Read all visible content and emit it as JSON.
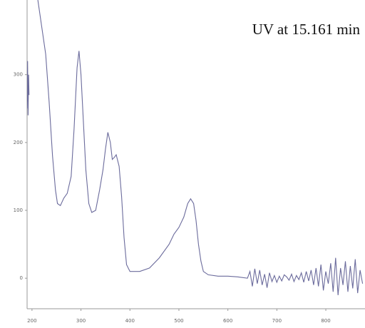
{
  "chart_data": {
    "type": "line",
    "title": "UV at 15.161 min",
    "x": [
      190,
      191,
      192,
      193,
      194,
      200,
      212,
      220,
      228,
      235,
      242,
      248,
      252,
      258,
      265,
      272,
      280,
      286,
      292,
      296,
      300,
      305,
      310,
      316,
      322,
      330,
      338,
      345,
      350,
      355,
      360,
      364,
      368,
      372,
      378,
      383,
      388,
      393,
      400,
      420,
      440,
      460,
      480,
      490,
      500,
      510,
      518,
      524,
      530,
      535,
      540,
      545,
      550,
      560,
      580,
      600,
      620,
      640,
      645,
      650,
      655,
      660,
      665,
      670,
      675,
      680,
      685,
      690,
      695,
      700,
      705,
      710,
      715,
      720,
      725,
      730,
      735,
      740,
      745,
      750,
      755,
      760,
      765,
      770,
      775,
      780,
      785,
      790,
      795,
      800,
      805,
      810,
      815,
      820,
      825,
      830,
      835,
      840,
      845,
      850,
      855,
      860,
      865,
      870,
      875
    ],
    "series": [
      {
        "color": "#6b6b9c",
        "values": [
          250,
          320,
          240,
          300,
          270,
          null,
          410,
          370,
          330,
          260,
          180,
          130,
          110,
          107,
          118,
          125,
          150,
          220,
          310,
          335,
          300,
          230,
          160,
          110,
          97,
          100,
          130,
          160,
          190,
          215,
          200,
          175,
          178,
          182,
          165,
          120,
          60,
          20,
          10,
          10,
          15,
          30,
          50,
          65,
          75,
          90,
          110,
          117,
          110,
          85,
          50,
          25,
          10,
          5,
          3,
          3,
          2,
          0,
          10,
          -12,
          14,
          -8,
          12,
          -10,
          6,
          -14,
          8,
          -5,
          4,
          -6,
          3,
          -4,
          5,
          2,
          -3,
          6,
          -5,
          4,
          -2,
          8,
          -6,
          10,
          -4,
          12,
          -10,
          15,
          -12,
          20,
          -18,
          10,
          -8,
          22,
          -20,
          30,
          -25,
          15,
          -10,
          25,
          -20,
          18,
          -15,
          28,
          -22,
          12,
          -8
        ]
      }
    ],
    "xlim": [
      190,
      880
    ],
    "ylim": [
      -45,
      410
    ],
    "xticks": [
      200,
      300,
      400,
      500,
      600,
      700,
      800
    ],
    "yticks": [
      0,
      100,
      200,
      300
    ]
  }
}
